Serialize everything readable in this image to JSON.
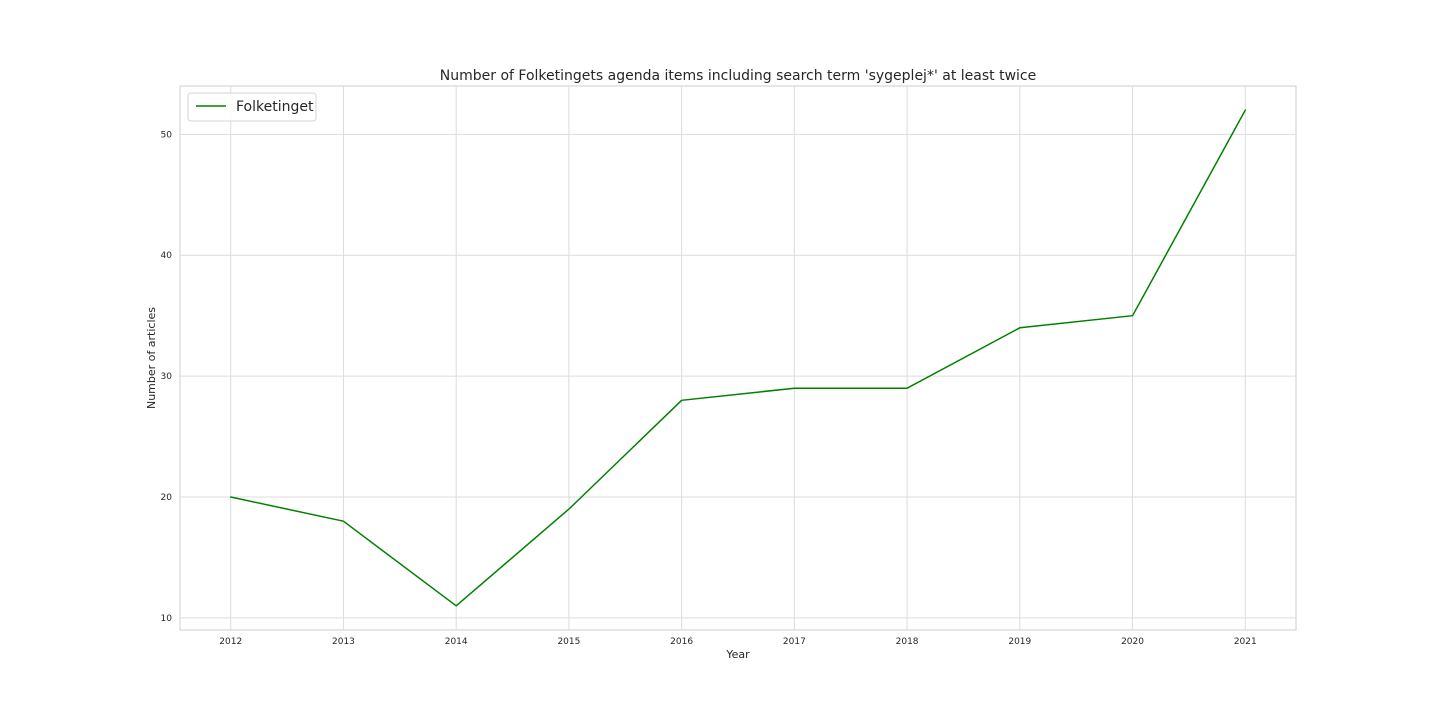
{
  "chart_data": {
    "type": "line",
    "title": "Number of Folketingets agenda items including search term 'sygeplej*' at least twice",
    "xlabel": "Year",
    "ylabel": "Number of articles",
    "x": [
      2012,
      2013,
      2014,
      2015,
      2016,
      2017,
      2018,
      2019,
      2020,
      2021
    ],
    "x_tick_labels": [
      "2012",
      "2013",
      "2014",
      "2015",
      "2016",
      "2017",
      "2018",
      "2019",
      "2020",
      "2021"
    ],
    "y_ticks": [
      10,
      20,
      30,
      40,
      50
    ],
    "y_tick_labels": [
      "10",
      "20",
      "30",
      "40",
      "50"
    ],
    "xlim": [
      2011.55,
      2021.45
    ],
    "ylim": [
      9,
      54
    ],
    "grid": true,
    "legend_position": "top-left",
    "series": [
      {
        "name": "Folketinget",
        "color": "#008000",
        "values": [
          20,
          18,
          11,
          19,
          28,
          29,
          29,
          34,
          35,
          52
        ]
      }
    ]
  }
}
